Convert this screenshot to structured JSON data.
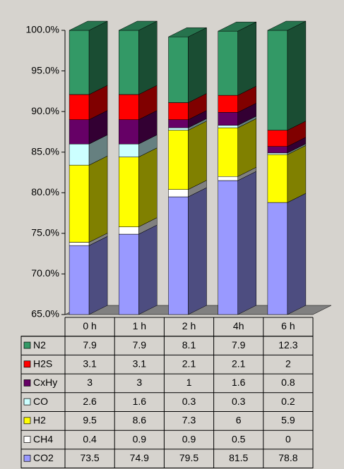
{
  "chart_data": {
    "type": "bar3d_stacked",
    "categories": [
      "0 h",
      "1 h",
      "2 h",
      "4h",
      "6 h"
    ],
    "series": [
      {
        "name": "N2",
        "color": "#339966",
        "values": [
          7.9,
          7.9,
          8.1,
          7.9,
          12.3
        ]
      },
      {
        "name": "H2S",
        "color": "#ff0000",
        "values": [
          3.1,
          3.1,
          2.1,
          2.1,
          2
        ]
      },
      {
        "name": "CxHy",
        "color": "#660066",
        "values": [
          3,
          3,
          1,
          1.6,
          0.8
        ]
      },
      {
        "name": "CO",
        "color": "#ccffff",
        "values": [
          2.6,
          1.6,
          0.3,
          0.3,
          0.2
        ]
      },
      {
        "name": "H2",
        "color": "#ffff00",
        "values": [
          9.5,
          8.6,
          7.3,
          6,
          5.9
        ]
      },
      {
        "name": "CH4",
        "color": "#ffffff",
        "values": [
          0.4,
          0.9,
          0.9,
          0.5,
          0
        ]
      },
      {
        "name": "CO2",
        "color": "#9999ff",
        "values": [
          73.5,
          74.9,
          79.5,
          81.5,
          78.8
        ]
      }
    ],
    "ylim": [
      65,
      100
    ],
    "yticks": [
      {
        "value": 65,
        "label": "65.0%"
      },
      {
        "value": 70,
        "label": "70.0%"
      },
      {
        "value": 75,
        "label": "75.0%"
      },
      {
        "value": 80,
        "label": "80.0%"
      },
      {
        "value": 85,
        "label": "85.0%"
      },
      {
        "value": 90,
        "label": "90.0%"
      },
      {
        "value": 95,
        "label": "95.0%"
      },
      {
        "value": 100,
        "label": "100.0%"
      }
    ],
    "grid": false
  }
}
